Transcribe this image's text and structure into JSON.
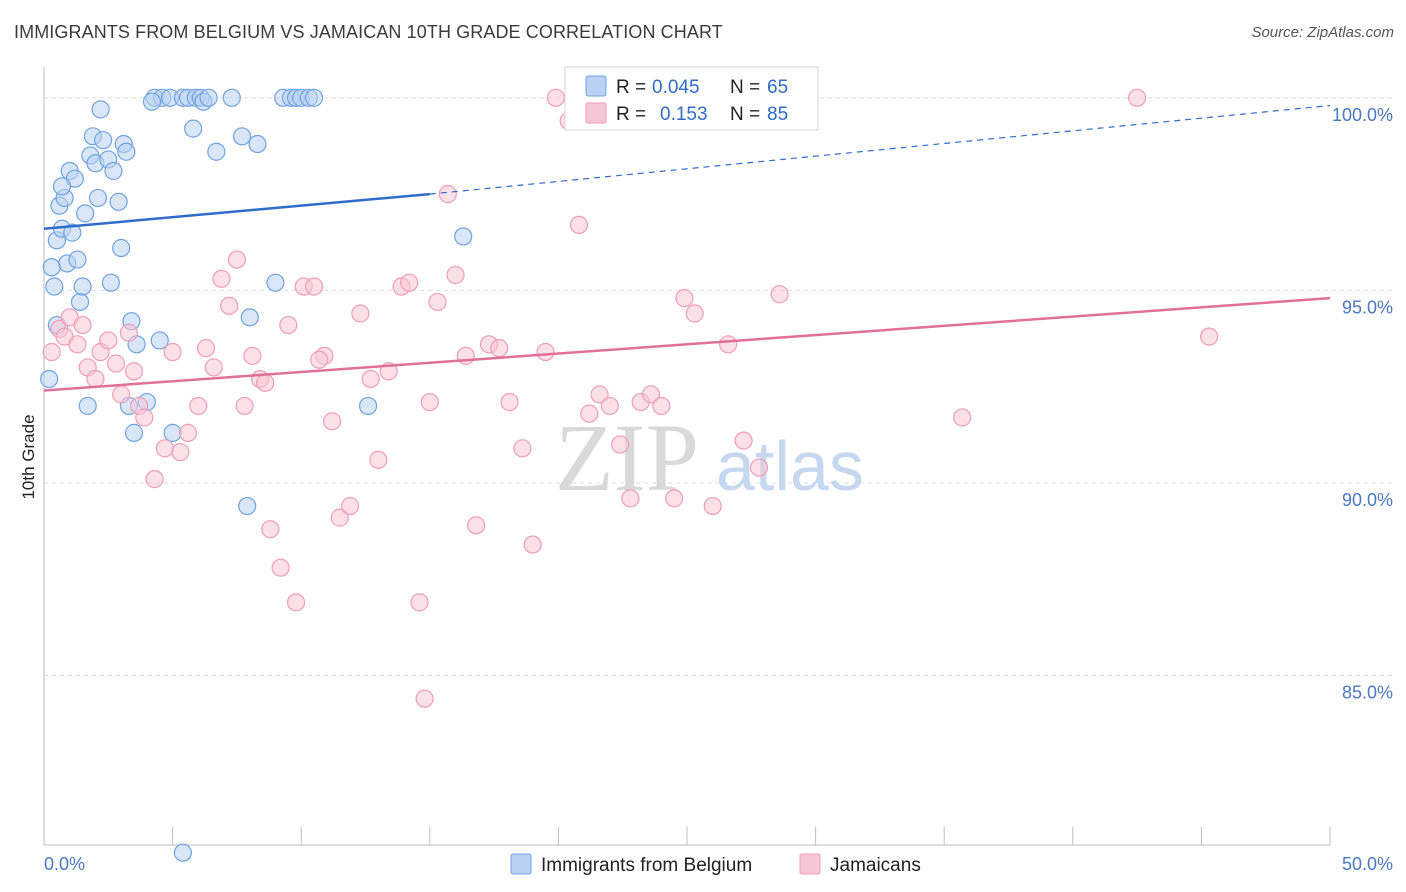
{
  "header": {
    "title": "IMMIGRANTS FROM BELGIUM VS JAMAICAN 10TH GRADE CORRELATION CHART",
    "source": "Source: ZipAtlas.com"
  },
  "watermark": {
    "zip": "ZIP",
    "atlas": "atlas"
  },
  "colors": {
    "blue": "#6fa3e0",
    "blue_fill": "#b9d2f3",
    "blue_line": "#2f6cc9",
    "pink": "#ee9db8",
    "pink_fill": "#f7c6d6",
    "pink_line": "#e07098",
    "tick": "#4a78c2",
    "grid": "#dcdcdc"
  },
  "legend": {
    "rows": [
      {
        "r_label": "R =",
        "r_value": "0.045",
        "n_label": "N =",
        "n_value": "65"
      },
      {
        "r_label": "R =",
        "r_value": "0.153",
        "n_label": "N =",
        "n_value": "85"
      }
    ]
  },
  "bottom_legend": [
    "Immigrants from Belgium",
    "Jamaicans"
  ],
  "chart_data": {
    "type": "scatter",
    "title": "IMMIGRANTS FROM BELGIUM VS JAMAICAN 10TH GRADE CORRELATION CHART",
    "xlabel": "",
    "ylabel": "10th Grade",
    "xlim": [
      0,
      50
    ],
    "ylim": [
      80.6,
      100.8
    ],
    "x_tick_labels": [
      {
        "value": 0,
        "label": "0.0%"
      },
      {
        "value": 50,
        "label": "50.0%"
      }
    ],
    "y_tick_labels": [
      {
        "value": 100,
        "label": "100.0%"
      },
      {
        "value": 95,
        "label": "95.0%"
      },
      {
        "value": 90,
        "label": "90.0%"
      },
      {
        "value": 85,
        "label": "85.0%"
      }
    ],
    "grid": true,
    "legend_position": "top-center",
    "series": [
      {
        "name": "Immigrants from Belgium",
        "r": 0.045,
        "n": 65,
        "trend": {
          "x0": 0,
          "y0": 96.6,
          "x1": 15,
          "y1": 97.5,
          "dash_to_x": 50,
          "dash_to_y": 99.8
        },
        "points": [
          [
            0.2,
            92.7
          ],
          [
            0.4,
            95.1
          ],
          [
            0.5,
            96.3
          ],
          [
            0.6,
            97.2
          ],
          [
            0.7,
            96.6
          ],
          [
            0.8,
            97.4
          ],
          [
            0.9,
            95.7
          ],
          [
            1.0,
            98.1
          ],
          [
            1.1,
            96.5
          ],
          [
            1.2,
            97.9
          ],
          [
            1.3,
            95.8
          ],
          [
            1.4,
            94.7
          ],
          [
            1.5,
            95.1
          ],
          [
            1.6,
            97.0
          ],
          [
            1.8,
            98.5
          ],
          [
            1.9,
            99.0
          ],
          [
            2.0,
            98.3
          ],
          [
            2.2,
            99.7
          ],
          [
            2.3,
            98.9
          ],
          [
            2.5,
            98.4
          ],
          [
            2.7,
            98.1
          ],
          [
            2.9,
            97.3
          ],
          [
            3.1,
            98.8
          ],
          [
            3.2,
            98.6
          ],
          [
            3.4,
            94.2
          ],
          [
            3.6,
            93.6
          ],
          [
            4.3,
            100.0
          ],
          [
            4.6,
            100.0
          ],
          [
            4.9,
            100.0
          ],
          [
            4.2,
            99.9
          ],
          [
            5.4,
            100.0
          ],
          [
            5.6,
            100.0
          ],
          [
            5.8,
            99.2
          ],
          [
            5.9,
            100.0
          ],
          [
            6.1,
            100.0
          ],
          [
            6.2,
            99.9
          ],
          [
            6.4,
            100.0
          ],
          [
            6.7,
            98.6
          ],
          [
            7.3,
            100.0
          ],
          [
            7.7,
            99.0
          ],
          [
            8.0,
            94.3
          ],
          [
            8.3,
            98.8
          ],
          [
            3.3,
            92.0
          ],
          [
            4.0,
            92.1
          ],
          [
            4.5,
            93.7
          ],
          [
            5.0,
            91.3
          ],
          [
            7.9,
            89.4
          ],
          [
            5.4,
            80.4
          ],
          [
            9.3,
            100.0
          ],
          [
            9.6,
            100.0
          ],
          [
            9.8,
            100.0
          ],
          [
            10.0,
            100.0
          ],
          [
            10.3,
            100.0
          ],
          [
            10.5,
            100.0
          ],
          [
            9.0,
            95.2
          ],
          [
            12.6,
            92.0
          ],
          [
            1.7,
            92.0
          ],
          [
            2.6,
            95.2
          ],
          [
            3.5,
            91.3
          ],
          [
            0.7,
            97.7
          ],
          [
            0.3,
            95.6
          ],
          [
            0.5,
            94.1
          ],
          [
            2.1,
            97.4
          ],
          [
            3.0,
            96.1
          ],
          [
            16.3,
            96.4
          ]
        ]
      },
      {
        "name": "Jamaicans",
        "r": 0.153,
        "n": 85,
        "trend": {
          "x0": 0,
          "y0": 92.4,
          "x1": 50,
          "y1": 94.8
        },
        "points": [
          [
            0.3,
            93.4
          ],
          [
            0.6,
            94.0
          ],
          [
            0.8,
            93.8
          ],
          [
            1.0,
            94.3
          ],
          [
            1.3,
            93.6
          ],
          [
            1.5,
            94.1
          ],
          [
            1.7,
            93.0
          ],
          [
            2.0,
            92.7
          ],
          [
            2.2,
            93.4
          ],
          [
            2.5,
            93.7
          ],
          [
            2.8,
            93.1
          ],
          [
            3.0,
            92.3
          ],
          [
            3.3,
            93.9
          ],
          [
            3.5,
            92.9
          ],
          [
            3.7,
            92.0
          ],
          [
            3.9,
            91.7
          ],
          [
            4.3,
            90.1
          ],
          [
            4.7,
            90.9
          ],
          [
            5.0,
            93.4
          ],
          [
            5.3,
            90.8
          ],
          [
            5.6,
            91.3
          ],
          [
            6.0,
            92.0
          ],
          [
            6.3,
            93.5
          ],
          [
            6.6,
            93.0
          ],
          [
            6.9,
            95.3
          ],
          [
            7.2,
            94.6
          ],
          [
            7.5,
            95.8
          ],
          [
            7.8,
            92.0
          ],
          [
            8.1,
            93.3
          ],
          [
            8.4,
            92.7
          ],
          [
            8.8,
            88.8
          ],
          [
            9.2,
            87.8
          ],
          [
            9.5,
            94.1
          ],
          [
            9.8,
            86.9
          ],
          [
            10.1,
            95.1
          ],
          [
            10.5,
            95.1
          ],
          [
            10.9,
            93.3
          ],
          [
            11.2,
            91.6
          ],
          [
            11.5,
            89.1
          ],
          [
            11.9,
            89.4
          ],
          [
            12.3,
            94.4
          ],
          [
            12.7,
            92.7
          ],
          [
            13.0,
            90.6
          ],
          [
            13.4,
            92.9
          ],
          [
            13.9,
            95.1
          ],
          [
            14.2,
            95.2
          ],
          [
            14.6,
            86.9
          ],
          [
            15.0,
            92.1
          ],
          [
            15.3,
            94.7
          ],
          [
            15.7,
            97.5
          ],
          [
            16.0,
            95.4
          ],
          [
            16.4,
            93.3
          ],
          [
            16.8,
            88.9
          ],
          [
            17.3,
            93.6
          ],
          [
            17.7,
            93.5
          ],
          [
            18.1,
            92.1
          ],
          [
            18.6,
            90.9
          ],
          [
            19.0,
            88.4
          ],
          [
            19.5,
            93.4
          ],
          [
            19.9,
            100.0
          ],
          [
            20.4,
            99.4
          ],
          [
            20.8,
            96.7
          ],
          [
            21.2,
            91.8
          ],
          [
            21.6,
            92.3
          ],
          [
            22.0,
            92.0
          ],
          [
            22.4,
            91.0
          ],
          [
            22.8,
            89.6
          ],
          [
            23.2,
            92.1
          ],
          [
            23.6,
            92.3
          ],
          [
            24.0,
            92.0
          ],
          [
            24.5,
            89.6
          ],
          [
            24.9,
            94.8
          ],
          [
            25.3,
            94.4
          ],
          [
            26.0,
            89.4
          ],
          [
            26.6,
            93.6
          ],
          [
            27.2,
            91.1
          ],
          [
            27.8,
            90.4
          ],
          [
            28.6,
            94.9
          ],
          [
            29.5,
            100.0
          ],
          [
            35.7,
            91.7
          ],
          [
            42.5,
            100.0
          ],
          [
            45.3,
            93.8
          ],
          [
            10.7,
            93.2
          ],
          [
            14.8,
            84.4
          ],
          [
            8.6,
            92.6
          ]
        ]
      }
    ]
  }
}
